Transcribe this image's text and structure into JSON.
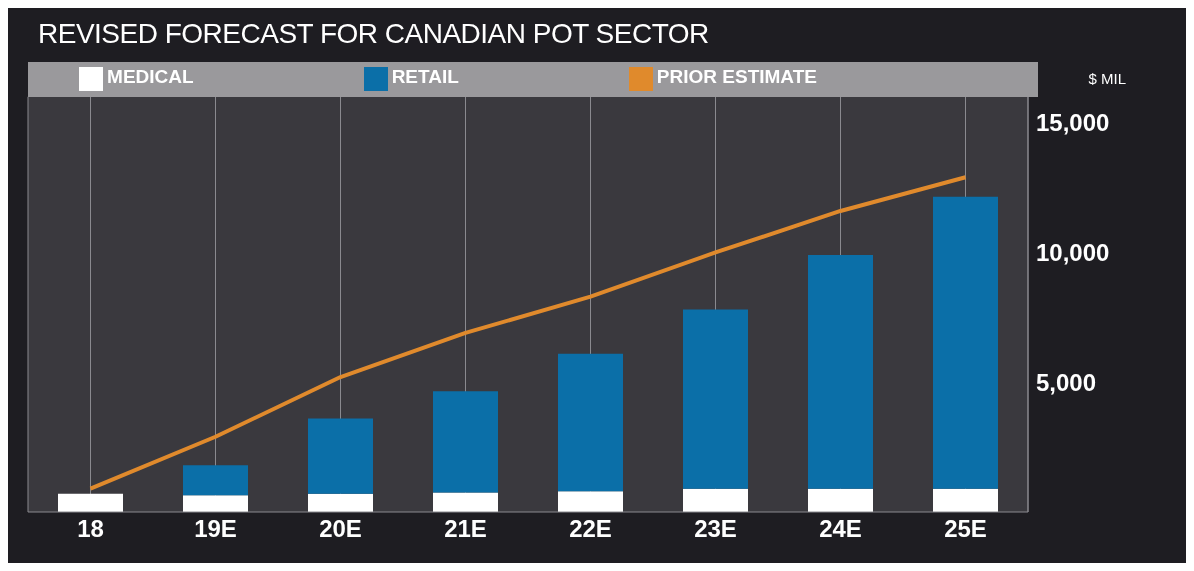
{
  "chart_data": {
    "type": "bar",
    "title": "REVISED FORECAST FOR CANADIAN POT SECTOR",
    "ylabel": "$ MIL",
    "categories": [
      "18",
      "19E",
      "20E",
      "21E",
      "22E",
      "23E",
      "24E",
      "25E"
    ],
    "series": [
      {
        "name": "MEDICAL",
        "color": "#ffffff",
        "values": [
          700,
          650,
          700,
          750,
          800,
          900,
          900,
          900
        ]
      },
      {
        "name": "RETAIL",
        "color": "#0b6fa8",
        "values": [
          0,
          1150,
          2900,
          3900,
          5300,
          6900,
          9000,
          11250
        ]
      },
      {
        "name": "PRIOR ESTIMATE",
        "type": "line",
        "color": "#e08a2c",
        "values": [
          900,
          2900,
          5200,
          6900,
          8300,
          10000,
          11600,
          12900
        ]
      }
    ],
    "stacked": true,
    "ylim": [
      0,
      16000
    ],
    "yticks": [
      {
        "value": 5000,
        "label": "5,000"
      },
      {
        "value": 10000,
        "label": "10,000"
      },
      {
        "value": 15000,
        "label": "15,000"
      }
    ],
    "grid": "x",
    "legend": "top",
    "marker": "none",
    "line_style": "solid"
  }
}
